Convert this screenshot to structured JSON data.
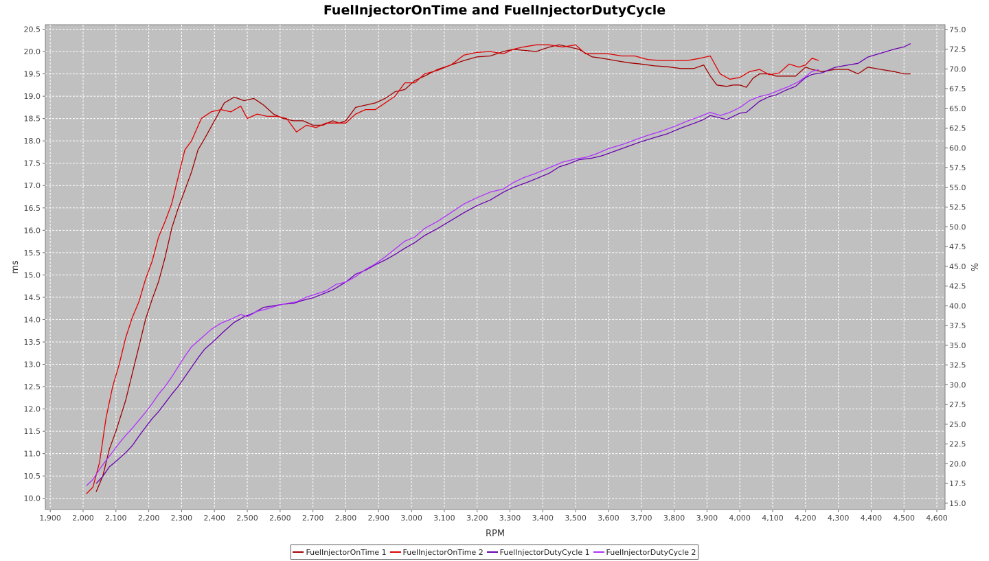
{
  "chart_data": {
    "type": "line",
    "title": "FuelInjectorOnTime and FuelInjectorDutyCycle",
    "xlabel": "RPM",
    "ylabel_left": "ms",
    "ylabel_right": "%",
    "xlim": [
      1885,
      4625
    ],
    "ylim_left": [
      9.75,
      20.6
    ],
    "ylim_right": [
      14.2,
      75.6
    ],
    "x_ticks": [
      "1,900",
      "2,000",
      "2,100",
      "2,200",
      "2,300",
      "2,400",
      "2,500",
      "2,600",
      "2,700",
      "2,800",
      "2,900",
      "3,000",
      "3,100",
      "3,200",
      "3,300",
      "3,400",
      "3,500",
      "3,600",
      "3,700",
      "3,800",
      "3,900",
      "4,000",
      "4,100",
      "4,200",
      "4,300",
      "4,400",
      "4,500",
      "4,600"
    ],
    "y_left_ticks": [
      "10.0",
      "10.5",
      "11.0",
      "11.5",
      "12.0",
      "12.5",
      "13.0",
      "13.5",
      "14.0",
      "14.5",
      "15.0",
      "15.5",
      "16.0",
      "16.5",
      "17.0",
      "17.5",
      "18.0",
      "18.5",
      "19.0",
      "19.5",
      "20.0",
      "20.5"
    ],
    "y_right_ticks": [
      "15.0",
      "17.5",
      "20.0",
      "22.5",
      "25.0",
      "27.5",
      "30.0",
      "32.5",
      "35.0",
      "37.5",
      "40.0",
      "42.5",
      "45.0",
      "47.5",
      "50.0",
      "52.5",
      "55.0",
      "57.5",
      "60.0",
      "62.5",
      "65.0",
      "67.5",
      "70.0",
      "72.5",
      "75.0"
    ],
    "grid": true,
    "legend_position": "bottom",
    "series": [
      {
        "name": "FuelInjectorOnTime 1",
        "axis": "left",
        "color": "#a00000",
        "x": [
          2040,
          2060,
          2080,
          2100,
          2130,
          2150,
          2170,
          2190,
          2210,
          2230,
          2250,
          2270,
          2290,
          2310,
          2330,
          2350,
          2370,
          2400,
          2430,
          2460,
          2490,
          2520,
          2550,
          2580,
          2610,
          2640,
          2670,
          2700,
          2730,
          2760,
          2780,
          2800,
          2830,
          2860,
          2890,
          2920,
          2950,
          2980,
          3010,
          3040,
          3080,
          3120,
          3160,
          3200,
          3240,
          3280,
          3310,
          3350,
          3380,
          3420,
          3450,
          3480,
          3510,
          3550,
          3580,
          3620,
          3660,
          3700,
          3740,
          3780,
          3820,
          3860,
          3890,
          3910,
          3930,
          3960,
          3980,
          4000,
          4020,
          4040,
          4060,
          4090,
          4110,
          4140,
          4170,
          4200,
          4220,
          4250,
          4290,
          4330,
          4360,
          4390,
          4430,
          4470,
          4500,
          4520
        ],
        "y": [
          10.15,
          10.5,
          11.1,
          11.5,
          12.2,
          12.8,
          13.4,
          14.0,
          14.45,
          14.85,
          15.4,
          16.05,
          16.5,
          16.9,
          17.3,
          17.8,
          18.05,
          18.45,
          18.85,
          18.98,
          18.9,
          18.95,
          18.8,
          18.6,
          18.5,
          18.45,
          18.45,
          18.35,
          18.35,
          18.45,
          18.4,
          18.45,
          18.75,
          18.8,
          18.85,
          18.95,
          19.1,
          19.15,
          19.35,
          19.45,
          19.6,
          19.7,
          19.8,
          19.88,
          19.9,
          20.0,
          20.05,
          20.02,
          20.0,
          20.1,
          20.15,
          20.1,
          20.05,
          19.88,
          19.85,
          19.8,
          19.75,
          19.72,
          19.68,
          19.66,
          19.62,
          19.62,
          19.7,
          19.45,
          19.25,
          19.22,
          19.25,
          19.25,
          19.2,
          19.4,
          19.5,
          19.5,
          19.45,
          19.45,
          19.45,
          19.65,
          19.6,
          19.55,
          19.6,
          19.6,
          19.5,
          19.65,
          19.6,
          19.55,
          19.5,
          19.5
        ]
      },
      {
        "name": "FuelInjectorOnTime 2",
        "axis": "left",
        "color": "#e00000",
        "x": [
          2010,
          2030,
          2050,
          2070,
          2090,
          2110,
          2130,
          2150,
          2170,
          2190,
          2210,
          2230,
          2250,
          2270,
          2290,
          2310,
          2330,
          2360,
          2390,
          2420,
          2450,
          2480,
          2500,
          2530,
          2560,
          2590,
          2620,
          2650,
          2680,
          2710,
          2740,
          2770,
          2800,
          2830,
          2860,
          2890,
          2920,
          2950,
          2980,
          3010,
          3040,
          3080,
          3120,
          3160,
          3200,
          3240,
          3280,
          3310,
          3340,
          3380,
          3420,
          3460,
          3500,
          3530,
          3560,
          3600,
          3640,
          3680,
          3720,
          3760,
          3800,
          3840,
          3880,
          3910,
          3940,
          3970,
          4000,
          4030,
          4060,
          4090,
          4120,
          4150,
          4180,
          4200,
          4220,
          4240
        ],
        "y": [
          10.1,
          10.25,
          10.8,
          11.8,
          12.5,
          13.0,
          13.6,
          14.05,
          14.4,
          14.9,
          15.3,
          15.85,
          16.2,
          16.6,
          17.2,
          17.8,
          18.0,
          18.5,
          18.65,
          18.7,
          18.65,
          18.78,
          18.5,
          18.6,
          18.55,
          18.55,
          18.5,
          18.2,
          18.35,
          18.3,
          18.4,
          18.4,
          18.4,
          18.6,
          18.7,
          18.7,
          18.85,
          19.0,
          19.3,
          19.3,
          19.5,
          19.58,
          19.7,
          19.92,
          19.98,
          20.0,
          19.95,
          20.05,
          20.1,
          20.15,
          20.15,
          20.1,
          20.15,
          19.95,
          19.95,
          19.95,
          19.9,
          19.9,
          19.82,
          19.8,
          19.8,
          19.8,
          19.85,
          19.9,
          19.5,
          19.38,
          19.42,
          19.55,
          19.6,
          19.48,
          19.52,
          19.72,
          19.65,
          19.7,
          19.85,
          19.8
        ]
      },
      {
        "name": "FuelInjectorDutyCycle 1",
        "axis": "right",
        "color": "#6a00b0",
        "x": [
          2040,
          2060,
          2080,
          2100,
          2130,
          2150,
          2170,
          2190,
          2210,
          2230,
          2250,
          2270,
          2290,
          2310,
          2330,
          2350,
          2370,
          2400,
          2430,
          2460,
          2490,
          2520,
          2550,
          2580,
          2610,
          2640,
          2670,
          2700,
          2730,
          2760,
          2780,
          2800,
          2830,
          2860,
          2890,
          2920,
          2950,
          2980,
          3010,
          3040,
          3080,
          3120,
          3160,
          3200,
          3240,
          3280,
          3310,
          3350,
          3380,
          3420,
          3450,
          3480,
          3510,
          3550,
          3580,
          3620,
          3660,
          3700,
          3740,
          3780,
          3820,
          3860,
          3890,
          3910,
          3930,
          3960,
          3980,
          4000,
          4020,
          4040,
          4060,
          4090,
          4110,
          4140,
          4170,
          4200,
          4220,
          4250,
          4290,
          4330,
          4360,
          4390,
          4430,
          4470,
          4500,
          4520
        ],
        "y": [
          17.5,
          18.4,
          19.6,
          20.3,
          21.4,
          22.3,
          23.5,
          24.6,
          25.7,
          26.6,
          27.7,
          28.8,
          29.8,
          31.0,
          32.2,
          33.4,
          34.5,
          35.6,
          36.8,
          37.9,
          38.6,
          39.1,
          39.8,
          40.0,
          40.2,
          40.3,
          40.7,
          41.0,
          41.5,
          42.0,
          42.5,
          43.0,
          44.0,
          44.5,
          45.2,
          45.8,
          46.5,
          47.3,
          48.0,
          48.9,
          49.8,
          50.8,
          51.8,
          52.7,
          53.4,
          54.4,
          55.0,
          55.6,
          56.1,
          56.8,
          57.6,
          58.0,
          58.5,
          58.7,
          59.0,
          59.6,
          60.2,
          60.8,
          61.3,
          61.8,
          62.5,
          63.1,
          63.6,
          64.1,
          63.9,
          63.6,
          64.0,
          64.4,
          64.5,
          65.2,
          65.9,
          66.5,
          66.7,
          67.3,
          67.8,
          68.9,
          69.3,
          69.5,
          70.2,
          70.5,
          70.7,
          71.5,
          72.0,
          72.5,
          72.8,
          73.2
        ]
      },
      {
        "name": "FuelInjectorDutyCycle 2",
        "axis": "right",
        "color": "#b030ff",
        "x": [
          2010,
          2030,
          2050,
          2070,
          2090,
          2110,
          2130,
          2150,
          2170,
          2190,
          2210,
          2230,
          2250,
          2270,
          2290,
          2310,
          2330,
          2360,
          2390,
          2420,
          2450,
          2480,
          2500,
          2530,
          2560,
          2590,
          2620,
          2650,
          2680,
          2710,
          2740,
          2770,
          2800,
          2830,
          2860,
          2890,
          2920,
          2950,
          2980,
          3010,
          3040,
          3080,
          3120,
          3160,
          3200,
          3240,
          3280,
          3310,
          3340,
          3380,
          3420,
          3460,
          3500,
          3530,
          3560,
          3600,
          3640,
          3680,
          3720,
          3760,
          3800,
          3840,
          3880,
          3910,
          3940,
          3970,
          4000,
          4030,
          4060,
          4090,
          4120,
          4150,
          4180,
          4200,
          4220,
          4240
        ],
        "y": [
          17.2,
          18.0,
          19.3,
          20.4,
          21.5,
          22.6,
          23.6,
          24.5,
          25.5,
          26.5,
          27.6,
          28.8,
          29.8,
          31.0,
          32.3,
          33.6,
          34.8,
          35.9,
          37.0,
          37.8,
          38.3,
          38.9,
          38.6,
          39.3,
          39.6,
          40.0,
          40.3,
          40.5,
          41.1,
          41.5,
          41.9,
          42.7,
          43.0,
          43.7,
          44.6,
          45.3,
          46.2,
          47.2,
          48.2,
          48.7,
          49.8,
          50.7,
          51.8,
          52.9,
          53.7,
          54.4,
          54.8,
          55.6,
          56.2,
          56.8,
          57.5,
          58.2,
          58.6,
          58.8,
          59.2,
          59.9,
          60.4,
          61.0,
          61.6,
          62.1,
          62.7,
          63.4,
          64.0,
          64.5,
          64.1,
          64.5,
          65.1,
          66.0,
          66.5,
          66.8,
          67.3,
          67.8,
          68.4,
          69.0,
          69.7,
          69.9
        ]
      }
    ]
  }
}
